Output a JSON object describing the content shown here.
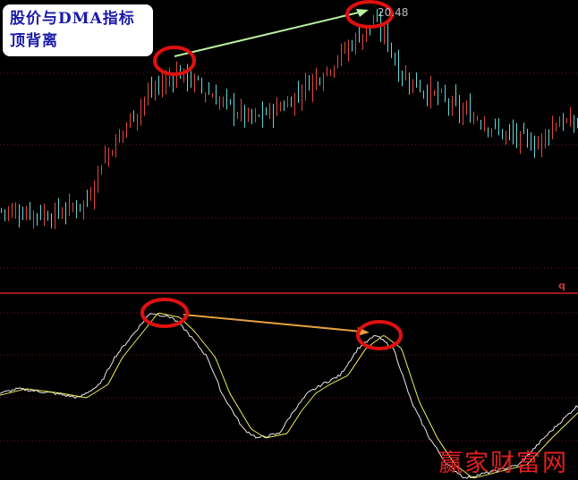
{
  "annotation": {
    "line1": "股价与DMA指标",
    "line2": "顶背离"
  },
  "watermark": "赢家财富网",
  "colors": {
    "up": "#e0483e",
    "down": "#5fd8d8",
    "dma": "#e8e8e8",
    "ama": "#f0f060",
    "circle": "#e01010",
    "grid": "#6a1a1a",
    "price_arrow": "#b8f0a0",
    "dma_arrow": "#e0a040"
  },
  "chart_data": [
    {
      "type": "candlestick",
      "title": "",
      "max_label": "20.48",
      "grid": true,
      "close_path": {
        "index": [
          0,
          15,
          24,
          28,
          35,
          40,
          49,
          55,
          60,
          70,
          75,
          80,
          85,
          90,
          95,
          100,
          104,
          108,
          111,
          118,
          123,
          128,
          133,
          140,
          148,
          150,
          155,
          161
        ],
        "price": [
          16.06,
          15.96,
          16.26,
          17.16,
          17.96,
          18.56,
          19.16,
          18.86,
          18.56,
          18.06,
          18.26,
          18.46,
          18.86,
          19.16,
          19.56,
          19.96,
          20.26,
          19.86,
          19.16,
          18.76,
          18.56,
          18.26,
          18.16,
          17.76,
          17.56,
          17.56,
          18.06,
          17.96
        ]
      }
    },
    {
      "type": "line",
      "title": "",
      "panel_label": "q",
      "grid": true,
      "series": [
        {
          "key": "dma",
          "index": [
            0,
            5,
            15,
            22,
            28,
            32,
            38,
            42,
            48,
            52,
            58,
            62,
            68,
            72,
            78,
            82,
            86,
            90,
            95,
            100,
            105,
            110,
            115,
            120,
            125,
            130,
            135,
            145,
            152,
            161
          ],
          "values": [
            0,
            0.05,
            0,
            -0.05,
            0.1,
            0.4,
            0.7,
            0.9,
            0.85,
            0.7,
            0.4,
            0,
            -0.4,
            -0.5,
            -0.45,
            -0.2,
            0,
            0.1,
            0.2,
            0.5,
            0.65,
            0.5,
            -0.1,
            -0.5,
            -0.8,
            -0.95,
            -0.9,
            -0.8,
            -0.5,
            -0.15
          ]
        }
      ]
    }
  ]
}
